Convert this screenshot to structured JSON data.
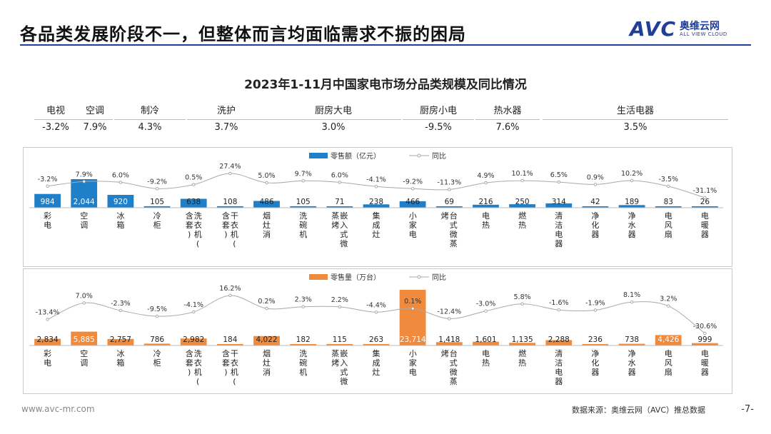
{
  "header": {
    "title": "各品类发展阶段不一，但整体而言均面临需求不振的困局",
    "logo": {
      "mark": "AVC",
      "cn": "奥维云网",
      "en": "ALL VIEW CLOUD"
    }
  },
  "colors": {
    "brand": "#1f3f98",
    "retail_amount": "#1f7fc8",
    "retail_volume": "#f08a3c",
    "yoy_line": "#aaaaaa"
  },
  "group_summary": [
    {
      "name": "电视",
      "value": "-3.2%"
    },
    {
      "name": "空调",
      "value": "7.9%"
    },
    {
      "name": "制冷",
      "value": "4.3%"
    },
    {
      "name": "洗护",
      "value": "3.7%"
    },
    {
      "name": "厨房大电",
      "value": "3.0%"
    },
    {
      "name": "厨房小电",
      "value": "-9.5%"
    },
    {
      "name": "热水器",
      "value": "7.6%"
    },
    {
      "name": "生活电器",
      "value": "3.5%"
    }
  ],
  "chart_data": [
    {
      "type": "bar",
      "title": "2023年1-11月中国家电市场分品类规模及同比情况",
      "legend": [
        "零售额（亿元）",
        "同比"
      ],
      "legend_position": "top-center",
      "categories": [
        "彩电",
        "空调",
        "冰箱",
        "冷柜",
        "洗衣机（含套）",
        "干衣机（含套）",
        "烟灶消",
        "洗碗机",
        "嵌入式微蒸烤",
        "集成灶",
        "小家电",
        "台式微蒸烤",
        "电热",
        "燃热",
        "清洁电器",
        "净化器",
        "净水器",
        "电风扇",
        "电暖器"
      ],
      "series": [
        {
          "name": "零售额（亿元）",
          "type": "bar",
          "values": [
            984,
            2044,
            920,
            105,
            638,
            108,
            486,
            105,
            71,
            238,
            466,
            69,
            216,
            250,
            314,
            42,
            189,
            83,
            26
          ],
          "labels": [
            "984",
            "2,044",
            "920",
            "105",
            "638",
            "108",
            "486",
            "105",
            "71",
            "238",
            "466",
            "69",
            "216",
            "250",
            "314",
            "42",
            "189",
            "83",
            "26"
          ]
        },
        {
          "name": "同比",
          "type": "line",
          "values": [
            -3.2,
            7.9,
            6.0,
            -9.2,
            0.5,
            27.4,
            5.0,
            9.7,
            6.0,
            -4.1,
            -9.2,
            -11.3,
            4.9,
            10.1,
            6.5,
            0.9,
            10.2,
            -3.5,
            -31.1
          ],
          "labels": [
            "-3.2%",
            "7.9%",
            "6.0%",
            "-9.2%",
            "0.5%",
            "27.4%",
            "5.0%",
            "9.7%",
            "6.0%",
            "-4.1%",
            "-9.2%",
            "-11.3%",
            "4.9%",
            "10.1%",
            "6.5%",
            "0.9%",
            "10.2%",
            "-3.5%",
            "-31.1%"
          ]
        }
      ]
    },
    {
      "type": "bar",
      "legend": [
        "零售量（万台）",
        "同比"
      ],
      "legend_position": "top-center",
      "categories": [
        "彩电",
        "空调",
        "冰箱",
        "冷柜",
        "洗衣机（含套）",
        "干衣机（含套）",
        "烟灶消",
        "洗碗机",
        "嵌入式微蒸烤",
        "集成灶",
        "小家电",
        "台式微蒸烤",
        "电热",
        "燃热",
        "清洁电器",
        "净化器",
        "净水器",
        "电风扇",
        "电暖器"
      ],
      "series": [
        {
          "name": "零售量（万台）",
          "type": "bar",
          "values": [
            2834,
            5885,
            2757,
            786,
            2982,
            184,
            4022,
            182,
            115,
            263,
            23714,
            1418,
            1601,
            1135,
            2288,
            236,
            738,
            4426,
            999
          ],
          "labels": [
            "2,834",
            "5,885",
            "2,757",
            "786",
            "2,982",
            "184",
            "4,022",
            "182",
            "115",
            "263",
            "23,714",
            "1,418",
            "1,601",
            "1,135",
            "2,288",
            "236",
            "738",
            "4,426",
            "999"
          ]
        },
        {
          "name": "同比",
          "type": "line",
          "values": [
            -13.4,
            7.0,
            -2.3,
            -9.5,
            -4.1,
            16.2,
            0.2,
            2.3,
            2.2,
            -4.4,
            0.1,
            -12.4,
            -3.0,
            5.8,
            -1.6,
            -1.9,
            8.1,
            3.2,
            -30.6
          ],
          "labels": [
            "-13.4%",
            "7.0%",
            "-2.3%",
            "-9.5%",
            "-4.1%",
            "16.2%",
            "0.2%",
            "2.3%",
            "2.2%",
            "-4.4%",
            "0.1%",
            "-12.4%",
            "-3.0%",
            "5.8%",
            "-1.6%",
            "-1.9%",
            "8.1%",
            "3.2%",
            "-30.6%"
          ]
        }
      ]
    }
  ],
  "footer": {
    "url": "www.avc-mr.com",
    "source": "数据来源：奥维云网（AVC）推总数据",
    "page": "-7-"
  }
}
